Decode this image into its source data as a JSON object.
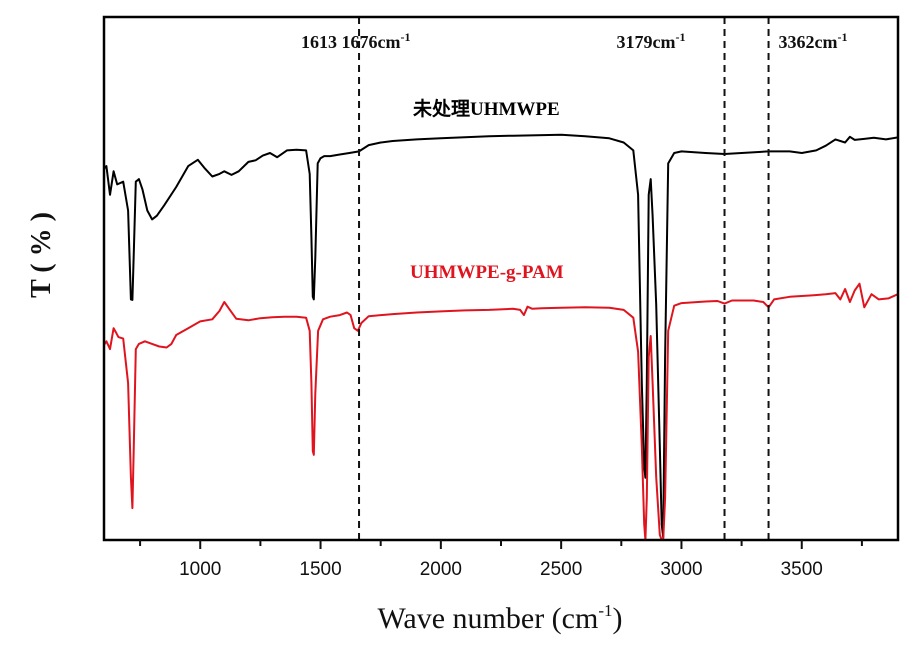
{
  "chart_data": {
    "type": "line",
    "title": "",
    "xlabel": "Wave number (cm",
    "xlabel_sup": "-1",
    "xlabel_close": ")",
    "ylabel": "T ( % )",
    "xlim": [
      600,
      3900
    ],
    "ylim": [
      0,
      100
    ],
    "y_units": "arbitrary (offset transmittance)",
    "x_ticks": [
      1000,
      1500,
      2000,
      2500,
      3000,
      3500
    ],
    "x_tick_labels": [
      "1000",
      "1500",
      "2000",
      "2500",
      "3000",
      "3500"
    ],
    "x_minor_ticks": [
      750,
      1250,
      1750,
      2250,
      2750,
      3250,
      3750
    ],
    "grid": false,
    "reference_lines": [
      {
        "x": 1660,
        "label": "1613  1676cm",
        "sup": "-1"
      },
      {
        "x": 3179,
        "label": "3179cm",
        "sup": "-1"
      },
      {
        "x": 3362,
        "label": "3362cm",
        "sup": "-1"
      }
    ],
    "series": [
      {
        "name": "未处理UHMWPE",
        "color": "#000000",
        "x": [
          600,
          610,
          625,
          640,
          655,
          680,
          700,
          712,
          718,
          724,
          732,
          745,
          760,
          780,
          800,
          820,
          850,
          900,
          950,
          990,
          1020,
          1050,
          1080,
          1100,
          1130,
          1160,
          1200,
          1230,
          1260,
          1290,
          1320,
          1360,
          1400,
          1440,
          1455,
          1462,
          1468,
          1472,
          1478,
          1488,
          1500,
          1515,
          1540,
          1580,
          1620,
          1660,
          1700,
          1750,
          1800,
          1900,
          2000,
          2100,
          2200,
          2300,
          2400,
          2500,
          2600,
          2700,
          2760,
          2800,
          2820,
          2835,
          2845,
          2850,
          2856,
          2864,
          2872,
          2880,
          2895,
          2910,
          2918,
          2924,
          2932,
          2945,
          2970,
          3000,
          3100,
          3179,
          3250,
          3362,
          3450,
          3500,
          3560,
          3600,
          3640,
          3680,
          3700,
          3720,
          3760,
          3800,
          3850,
          3900
        ],
        "y": [
          71,
          71.5,
          66,
          70.5,
          68,
          68.5,
          63,
          46,
          45.9,
          55,
          68.5,
          69,
          67,
          63,
          61.3,
          62,
          64,
          67.5,
          71.5,
          72.7,
          71,
          69.5,
          70,
          70.5,
          69.8,
          70.5,
          72.3,
          72.6,
          73.5,
          74,
          73.2,
          74.5,
          74.6,
          74.5,
          70,
          58,
          46.5,
          46,
          54,
          72,
          73,
          73.4,
          73.4,
          73.7,
          74,
          74.3,
          75.5,
          76,
          76.3,
          76.6,
          76.8,
          77,
          77.2,
          77.3,
          77.4,
          77.5,
          77.2,
          76.8,
          76,
          74.5,
          66,
          30,
          14,
          11.9,
          30,
          66,
          69,
          62,
          45,
          18,
          3,
          0.5,
          35,
          72,
          74,
          74.3,
          74,
          73.8,
          74,
          74.3,
          74.3,
          74,
          74.5,
          75.4,
          76.6,
          76,
          77.1,
          76.5,
          76.7,
          76.9,
          76.6,
          77
        ]
      },
      {
        "name": "UHMWPE-g-PAM",
        "color": "#e0141e",
        "x": [
          600,
          610,
          625,
          640,
          652,
          660,
          680,
          700,
          712,
          718,
          724,
          732,
          745,
          770,
          800,
          830,
          860,
          880,
          900,
          950,
          1000,
          1050,
          1080,
          1100,
          1120,
          1150,
          1200,
          1250,
          1300,
          1350,
          1400,
          1440,
          1455,
          1462,
          1468,
          1472,
          1478,
          1490,
          1510,
          1540,
          1580,
          1610,
          1625,
          1640,
          1655,
          1670,
          1700,
          1800,
          1900,
          2000,
          2100,
          2200,
          2300,
          2330,
          2345,
          2360,
          2380,
          2420,
          2500,
          2600,
          2700,
          2760,
          2800,
          2820,
          2835,
          2845,
          2850,
          2856,
          2864,
          2872,
          2880,
          2895,
          2910,
          2918,
          2924,
          2932,
          2945,
          2970,
          3000,
          3100,
          3150,
          3179,
          3210,
          3300,
          3340,
          3362,
          3385,
          3450,
          3550,
          3600,
          3640,
          3660,
          3680,
          3700,
          3720,
          3740,
          3760,
          3790,
          3820,
          3860,
          3900
        ],
        "y": [
          37.3,
          38,
          36.5,
          40.5,
          39.5,
          38.8,
          38.5,
          30,
          12,
          6.1,
          18,
          36.5,
          37.5,
          38,
          37.5,
          37,
          36.8,
          37.5,
          39.2,
          40.5,
          41.8,
          42.2,
          43.8,
          45.5,
          44.2,
          42.3,
          42,
          42.4,
          42.6,
          42.7,
          42.7,
          42.5,
          40,
          30,
          17,
          16.3,
          28,
          40,
          42.2,
          42.7,
          43,
          43.5,
          43,
          40.5,
          40,
          41.5,
          42.8,
          43.2,
          43.5,
          43.7,
          43.9,
          44,
          44.2,
          44,
          43,
          44.6,
          44.2,
          44.3,
          44.4,
          44.5,
          44.4,
          44,
          42.5,
          36,
          18,
          3,
          0,
          8,
          35,
          39,
          30,
          12,
          1,
          0,
          0,
          8,
          40,
          44.8,
          45.3,
          45.6,
          45.7,
          45.2,
          45.8,
          45.8,
          45.5,
          44.5,
          46,
          46.5,
          46.8,
          47,
          47.2,
          46,
          48,
          45.5,
          47.7,
          49,
          44.5,
          47,
          46,
          46.2,
          47
        ]
      }
    ],
    "series_labels": [
      {
        "text": "未处理UHMWPE",
        "color": "#000000",
        "position": "above-black-curve"
      },
      {
        "text": "UHMWPE-g-PAM",
        "color": "#e0141e",
        "position": "above-red-curve"
      }
    ]
  }
}
